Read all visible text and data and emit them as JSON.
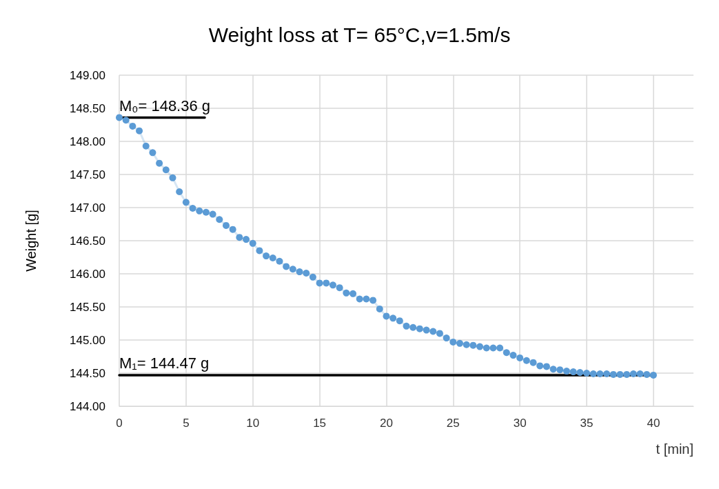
{
  "chart_data": {
    "type": "line",
    "title": "Weight loss at T= 65°C,v=1.5m/s",
    "xlabel": "t [min]",
    "ylabel": "Weight [g]",
    "xlim": [
      0,
      43
    ],
    "xticks": [
      0,
      5,
      10,
      15,
      20,
      25,
      30,
      35,
      40
    ],
    "ylim": [
      144,
      149
    ],
    "yticks": [
      {
        "value": 144,
        "label": "144.00"
      },
      {
        "value": 144.5,
        "label": "144.50"
      },
      {
        "value": 145,
        "label": "145.00"
      },
      {
        "value": 145.5,
        "label": "145.50"
      },
      {
        "value": 146,
        "label": "146.00"
      },
      {
        "value": 146.5,
        "label": "146.50"
      },
      {
        "value": 147,
        "label": "147.00"
      },
      {
        "value": 147.5,
        "label": "147.50"
      },
      {
        "value": 148,
        "label": "148.00"
      },
      {
        "value": 148.5,
        "label": "148.50"
      },
      {
        "value": 149,
        "label": "149.00"
      }
    ],
    "grid": true,
    "marker": "circle",
    "series": [
      {
        "color": "#5b9bd5",
        "x": [
          0,
          0.5,
          1,
          1.5,
          2,
          2.5,
          3,
          3.5,
          4,
          4.5,
          5,
          5.5,
          6,
          6.5,
          7,
          7.5,
          8,
          8.5,
          9,
          9.5,
          10,
          10.5,
          11,
          11.5,
          12,
          12.5,
          13,
          13.5,
          14,
          14.5,
          15,
          15.5,
          16,
          16.5,
          17,
          17.5,
          18,
          18.5,
          19,
          19.5,
          20,
          20.5,
          21,
          21.5,
          22,
          22.5,
          23,
          23.5,
          24,
          24.5,
          25,
          25.5,
          26,
          26.5,
          27,
          27.5,
          28,
          28.5,
          29,
          29.5,
          30,
          30.5,
          31,
          31.5,
          32,
          32.5,
          33,
          33.5,
          34,
          34.5,
          35,
          35.5,
          36,
          36.5,
          37,
          37.5,
          38,
          38.5,
          39,
          39.5,
          40
        ],
        "values": [
          148.36,
          148.32,
          148.23,
          148.16,
          147.93,
          147.83,
          147.67,
          147.57,
          147.45,
          147.24,
          147.08,
          146.99,
          146.95,
          146.93,
          146.9,
          146.82,
          146.73,
          146.67,
          146.55,
          146.52,
          146.46,
          146.35,
          146.27,
          146.24,
          146.19,
          146.11,
          146.07,
          146.03,
          146.01,
          145.95,
          145.86,
          145.86,
          145.83,
          145.79,
          145.71,
          145.7,
          145.62,
          145.62,
          145.6,
          145.47,
          145.36,
          145.33,
          145.29,
          145.21,
          145.19,
          145.17,
          145.15,
          145.13,
          145.1,
          145.03,
          144.97,
          144.95,
          144.93,
          144.92,
          144.9,
          144.88,
          144.88,
          144.88,
          144.81,
          144.77,
          144.73,
          144.69,
          144.66,
          144.61,
          144.6,
          144.56,
          144.55,
          144.53,
          144.52,
          144.51,
          144.5,
          144.49,
          144.49,
          144.49,
          144.48,
          144.48,
          144.48,
          144.49,
          144.49,
          144.48,
          144.47
        ]
      },
      {
        "color": "#000000",
        "marker": "none",
        "x": [
          0,
          6.4
        ],
        "values": [
          148.36,
          148.36
        ]
      },
      {
        "color": "#000000",
        "marker": "none",
        "x": [
          0,
          40
        ],
        "values": [
          144.47,
          144.47
        ]
      }
    ],
    "annotations": [
      {
        "text": "M₀= 148.36 g",
        "x": 0,
        "y": 148.36
      },
      {
        "text": "M₁= 144.47 g",
        "x": 0,
        "y": 144.47
      }
    ]
  }
}
